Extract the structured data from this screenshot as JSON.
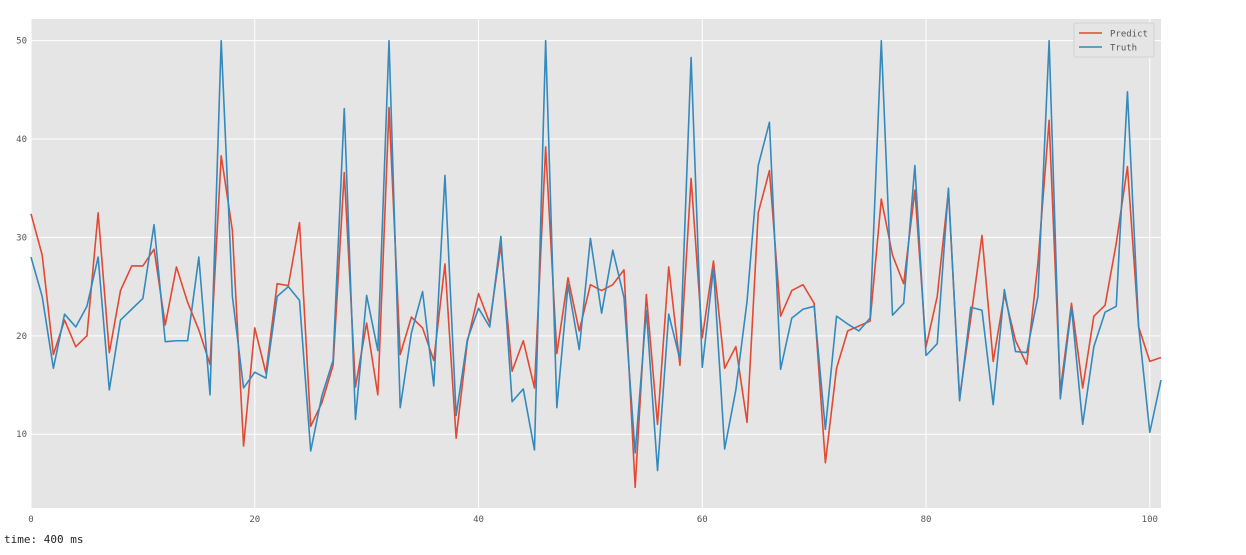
{
  "chart_data": {
    "type": "line",
    "title": "",
    "xlabel": "",
    "ylabel": "",
    "xlim": [
      0,
      101
    ],
    "ylim": [
      2.5,
      52.2
    ],
    "xticks": [
      0,
      20,
      40,
      60,
      80,
      100
    ],
    "yticks": [
      10,
      20,
      30,
      40,
      50
    ],
    "grid": true,
    "legend_position": "top-right",
    "x": [
      0,
      1,
      2,
      3,
      4,
      5,
      6,
      7,
      8,
      9,
      10,
      11,
      12,
      13,
      14,
      15,
      16,
      17,
      18,
      19,
      20,
      21,
      22,
      23,
      24,
      25,
      26,
      27,
      28,
      29,
      30,
      31,
      32,
      33,
      34,
      35,
      36,
      37,
      38,
      39,
      40,
      41,
      42,
      43,
      44,
      45,
      46,
      47,
      48,
      49,
      50,
      51,
      52,
      53,
      54,
      55,
      56,
      57,
      58,
      59,
      60,
      61,
      62,
      63,
      64,
      65,
      66,
      67,
      68,
      69,
      70,
      71,
      72,
      73,
      74,
      75,
      76,
      77,
      78,
      79,
      80,
      81,
      82,
      83,
      84,
      85,
      86,
      87,
      88,
      89,
      90,
      91,
      92,
      93,
      94,
      95,
      96,
      97,
      98,
      99,
      100,
      101
    ],
    "series": [
      {
        "name": "Predict",
        "color": "#E24A33",
        "values": [
          32.4,
          28.2,
          18.1,
          21.6,
          18.9,
          20.0,
          32.5,
          18.3,
          24.6,
          27.1,
          27.1,
          28.8,
          21.1,
          27.0,
          23.4,
          20.6,
          17.1,
          38.3,
          30.7,
          8.8,
          20.8,
          16.2,
          25.3,
          25.1,
          31.5,
          10.8,
          13.2,
          17.0,
          36.6,
          14.8,
          21.3,
          14.0,
          43.2,
          18.1,
          21.9,
          20.8,
          17.5,
          27.3,
          9.6,
          19.4,
          24.3,
          21.3,
          29.2,
          16.4,
          19.5,
          14.7,
          39.2,
          18.2,
          25.9,
          20.5,
          25.2,
          24.6,
          25.2,
          26.7,
          4.6,
          24.2,
          11.0,
          27.0,
          17.0,
          36.0,
          19.8,
          27.6,
          16.7,
          18.9,
          11.2,
          32.5,
          36.8,
          22.0,
          24.6,
          25.2,
          23.3,
          7.1,
          16.7,
          20.5,
          21.0,
          21.5,
          33.9,
          28.2,
          25.3,
          34.8,
          18.9,
          24.0,
          34.7,
          13.7,
          21.8,
          30.2,
          17.4,
          24.2,
          19.5,
          17.1,
          27.4,
          41.9,
          14.4,
          23.3,
          14.7,
          22.0,
          23.1,
          29.4,
          37.2,
          20.9,
          17.4,
          17.8
        ]
      },
      {
        "name": "Truth",
        "color": "#348ABD",
        "values": [
          28.0,
          24.0,
          16.7,
          22.2,
          20.9,
          23.0,
          28.0,
          14.5,
          21.6,
          22.7,
          23.8,
          31.3,
          19.4,
          19.5,
          19.5,
          28.0,
          14.0,
          50.0,
          24.0,
          14.7,
          16.3,
          15.7,
          24.0,
          25.0,
          23.6,
          8.3,
          13.9,
          17.5,
          43.1,
          11.5,
          24.1,
          18.5,
          50.0,
          12.7,
          20.3,
          24.5,
          14.9,
          36.3,
          11.9,
          19.6,
          22.8,
          20.9,
          30.1,
          13.3,
          14.6,
          8.4,
          50.0,
          12.7,
          25.2,
          18.6,
          29.9,
          22.3,
          28.7,
          23.9,
          8.1,
          22.6,
          6.3,
          22.2,
          17.6,
          48.3,
          16.8,
          26.9,
          8.5,
          14.5,
          23.5,
          37.3,
          41.7,
          16.6,
          21.8,
          22.7,
          23.0,
          10.5,
          22.0,
          21.2,
          20.5,
          21.8,
          50.0,
          22.1,
          23.3,
          37.3,
          18.0,
          19.2,
          35.0,
          13.4,
          22.9,
          22.6,
          13.0,
          24.7,
          18.4,
          18.3,
          24.0,
          50.0,
          13.6,
          22.9,
          11.0,
          18.9,
          22.4,
          23.0,
          44.8,
          21.0,
          10.2,
          15.5
        ]
      }
    ]
  },
  "output": {
    "time_line": "time: 400 ms"
  }
}
